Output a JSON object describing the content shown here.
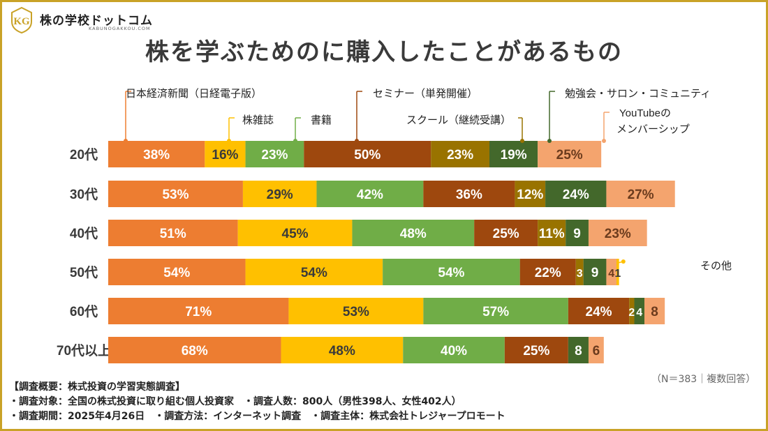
{
  "brand": {
    "name": "株の学校ドットコム",
    "sub": "KABUNOGAKKOU.COM",
    "mark": "KG",
    "colors": {
      "gold": "#c9a227"
    }
  },
  "title": "株を学ぶためのに購入したことがあるもの",
  "note": "（N＝383｜複数回答）",
  "footer": {
    "heading": "【調査概要：株式投資の学習実態調査】",
    "line1": "・調査対象：全国の株式投資に取り組む個人投資家　・調査人数：800人（男性398人、女性402人）",
    "line2": "・調査期間：2025年4月26日　・調査方法：インターネット調査　・調査主体：株式会社トレジャープロモート"
  },
  "chart_data": {
    "type": "bar",
    "orientation": "horizontal-stacked",
    "title": "株を学ぶためのに購入したことがあるもの",
    "categories": [
      "20代",
      "30代",
      "40代",
      "50代",
      "60代",
      "70代以上"
    ],
    "series": [
      {
        "name": "日本経済新聞（日経電子版）",
        "color": "#ed7d31",
        "text": "#ffffff",
        "values": [
          38,
          53,
          51,
          54,
          71,
          68
        ],
        "labels": [
          "38%",
          "53%",
          "51%",
          "54%",
          "71%",
          "68%"
        ]
      },
      {
        "name": "株雑誌",
        "color": "#ffc000",
        "text": "#3a3a3a",
        "values": [
          16,
          29,
          45,
          54,
          53,
          48
        ],
        "labels": [
          "16%",
          "29%",
          "45%",
          "54%",
          "53%",
          "48%"
        ]
      },
      {
        "name": "書籍",
        "color": "#70ad47",
        "text": "#ffffff",
        "values": [
          23,
          42,
          48,
          54,
          57,
          40
        ],
        "labels": [
          "23%",
          "42%",
          "48%",
          "54%",
          "57%",
          "40%"
        ]
      },
      {
        "name": "セミナー（単発開催）",
        "color": "#9e480e",
        "text": "#ffffff",
        "values": [
          50,
          36,
          25,
          22,
          24,
          25
        ],
        "labels": [
          "50%",
          "36%",
          "25%",
          "22%",
          "24%",
          "25%"
        ]
      },
      {
        "name": "スクール（継続受講）",
        "color": "#997300",
        "text": "#ffffff",
        "values": [
          23,
          12,
          11,
          3,
          2,
          0
        ],
        "labels": [
          "23%",
          "12%",
          "11%",
          "3",
          "2",
          ""
        ]
      },
      {
        "name": "勉強会・サロン・コミュニティ",
        "color": "#43682b",
        "text": "#ffffff",
        "values": [
          19,
          24,
          9,
          9,
          4,
          8
        ],
        "labels": [
          "19%",
          "24%",
          "9",
          "9",
          "4",
          "8"
        ]
      },
      {
        "name": "YouTubeのメンバーシップ",
        "color": "#f4a46e",
        "text": "#6b3b1d",
        "values": [
          25,
          27,
          23,
          4,
          8,
          6
        ],
        "labels": [
          "25%",
          "27%",
          "23%",
          "4",
          "8",
          "6"
        ]
      },
      {
        "name": "その他",
        "color": "#ffc000",
        "text": "#3a3a3a",
        "values": [
          0,
          0,
          0,
          1,
          0,
          0
        ],
        "labels": [
          "",
          "",
          "",
          "1",
          "",
          ""
        ]
      }
    ],
    "legend_callouts": [
      {
        "text": "日本経済新聞（日経電子版）",
        "series": 0
      },
      {
        "text": "株雑誌",
        "series": 1
      },
      {
        "text": "書籍",
        "series": 2
      },
      {
        "text": "セミナー（単発開催）",
        "series": 3
      },
      {
        "text": "スクール（継続受講）",
        "series": 4
      },
      {
        "text": "勉強会・サロン・コミュニティ",
        "series": 5
      },
      {
        "text": "YouTubeの",
        "text2": "メンバーシップ",
        "series": 6
      },
      {
        "text": "その他",
        "series": 7
      }
    ],
    "xlim": [
      0,
      250
    ]
  }
}
